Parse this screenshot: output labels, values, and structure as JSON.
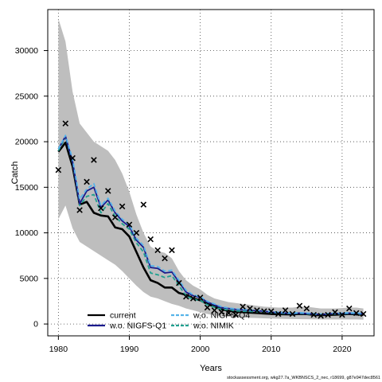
{
  "chart_data": {
    "type": "line",
    "xlabel": "Years",
    "ylabel": "Catch",
    "xlim": [
      1978.5,
      2024.5
    ],
    "ylim": [
      -1300,
      34500
    ],
    "x_ticks": [
      1980,
      1990,
      2000,
      2010,
      2020
    ],
    "y_ticks": [
      0,
      5000,
      10000,
      15000,
      20000,
      25000,
      30000
    ],
    "grid": "dotted",
    "legend_position": "bottom",
    "caption": "stockassessment.org, wkg27.7a_WKBNSCS_2_nec, r18699, g87e947dec8561",
    "colors": {
      "band": "#bebebe",
      "current": "#000000",
      "nigfsq1": "#1a1a8c",
      "nigfsq4": "#56b4e9",
      "nimik": "#20a090"
    },
    "years": [
      1980,
      1981,
      1982,
      1983,
      1984,
      1985,
      1986,
      1987,
      1988,
      1989,
      1990,
      1991,
      1992,
      1993,
      1994,
      1995,
      1996,
      1997,
      1998,
      1999,
      2000,
      2001,
      2002,
      2003,
      2004,
      2005,
      2006,
      2007,
      2008,
      2009,
      2010,
      2011,
      2012,
      2013,
      2014,
      2015,
      2016,
      2017,
      2018,
      2019,
      2020,
      2021,
      2022,
      2023
    ],
    "band_upper": [
      33500,
      31000,
      25500,
      22000,
      21000,
      20000,
      19500,
      19000,
      18000,
      16500,
      14500,
      12000,
      10000,
      8500,
      8000,
      7800,
      7200,
      5800,
      4800,
      4200,
      3800,
      3200,
      2800,
      2600,
      2400,
      2300,
      2200,
      2100,
      2000,
      1900,
      1850,
      1800,
      1800,
      1800,
      1900,
      1900,
      1800,
      1700,
      1700,
      1700,
      1750,
      1800,
      1800,
      1700
    ],
    "band_lower": [
      11500,
      13000,
      10500,
      9000,
      8500,
      8000,
      7500,
      7000,
      6500,
      5800,
      5000,
      4200,
      3500,
      3000,
      2800,
      2500,
      2200,
      2000,
      1700,
      1500,
      1300,
      1100,
      950,
      850,
      800,
      750,
      700,
      680,
      650,
      620,
      600,
      580,
      560,
      540,
      530,
      520,
      510,
      500,
      500,
      500,
      500,
      500,
      500,
      480
    ],
    "series": [
      {
        "name": "current",
        "key": "current",
        "style": "solid",
        "values": [
          18900,
          19900,
          17300,
          13100,
          13400,
          12200,
          11900,
          11800,
          10600,
          10400,
          9600,
          7900,
          6200,
          4800,
          4500,
          4000,
          4000,
          3400,
          3200,
          2800,
          2600,
          2200,
          1900,
          1600,
          1450,
          1350,
          1300,
          1250,
          1200,
          1150,
          1100,
          1080,
          1060,
          1050,
          1100,
          1080,
          1000,
          950,
          1000,
          1020,
          1050,
          1100,
          1050,
          1000
        ]
      },
      {
        "name": "w.o. NIGFS-Q1",
        "key": "nigfsq1",
        "style": "solid",
        "values": [
          19200,
          20600,
          17800,
          13200,
          14600,
          15000,
          12800,
          13600,
          12200,
          11300,
          10700,
          9200,
          8400,
          6200,
          6100,
          5600,
          5700,
          4600,
          3500,
          3100,
          2900,
          2400,
          2100,
          1800,
          1700,
          1600,
          1550,
          1500,
          1450,
          1400,
          1300,
          1250,
          1200,
          1150,
          1200,
          1150,
          1100,
          1050,
          1100,
          1150,
          1150,
          1200,
          1150,
          1100
        ]
      },
      {
        "name": "w.o. NIGFS-Q4",
        "key": "nigfsq4",
        "style": "dashed",
        "values": [
          19200,
          20700,
          18100,
          13700,
          14800,
          15400,
          13000,
          13800,
          12400,
          11500,
          10900,
          9400,
          8600,
          6400,
          6300,
          5800,
          5900,
          4800,
          3700,
          3200,
          3000,
          2500,
          2200,
          1900,
          1750,
          1650,
          1600,
          1550,
          1500,
          1450,
          1350,
          1300,
          1250,
          1200,
          1250,
          1200,
          1150,
          1100,
          1150,
          1200,
          1200,
          1250,
          1200,
          1150
        ]
      },
      {
        "name": "w.o. NIMIK",
        "key": "nimik",
        "style": "dashed",
        "values": [
          19000,
          20500,
          17700,
          13000,
          14000,
          14200,
          12200,
          13200,
          11800,
          11000,
          10400,
          8900,
          7900,
          5600,
          5400,
          5100,
          5300,
          4200,
          3100,
          2700,
          2600,
          2100,
          1850,
          1600,
          1550,
          1450,
          1400,
          1380,
          1350,
          1300,
          1250,
          1200,
          1150,
          1120,
          1150,
          1100,
          1050,
          1020,
          1080,
          1100,
          1100,
          1150,
          1100,
          1050
        ]
      }
    ],
    "observed": {
      "marker": "x",
      "x": [
        1980,
        1981,
        1982,
        1983,
        1984,
        1985,
        1986,
        1987,
        1988,
        1989,
        1990,
        1991,
        1992,
        1993,
        1994,
        1995,
        1996,
        1997,
        1998,
        1999,
        2000,
        2001,
        2002,
        2003,
        2004,
        2005,
        2006,
        2007,
        2008,
        2009,
        2010,
        2011,
        2012,
        2013,
        2014,
        2015,
        2016,
        2017,
        2018,
        2019,
        2020,
        2021,
        2022,
        2023
      ],
      "y": [
        16900,
        22000,
        18200,
        12500,
        15600,
        18000,
        12700,
        14600,
        11700,
        12900,
        10900,
        10000,
        13100,
        9300,
        8100,
        7200,
        8100,
        4500,
        3000,
        2800,
        2900,
        1800,
        1500,
        1300,
        1200,
        1000,
        1900,
        1700,
        1500,
        1400,
        1400,
        1100,
        1500,
        1100,
        2000,
        1700,
        1000,
        900,
        1000,
        1300,
        1000,
        1700,
        1200,
        1100
      ]
    },
    "legend": [
      {
        "label": "current",
        "key": "current",
        "style": "solid"
      },
      {
        "label": "w.o. NIGFS-Q4",
        "key": "nigfsq4",
        "style": "dashed"
      },
      {
        "label": "w.o. NIGFS-Q1",
        "key": "nigfsq1",
        "style": "solid"
      },
      {
        "label": "w.o. NIMIK",
        "key": "nimik",
        "style": "dashed"
      }
    ]
  }
}
